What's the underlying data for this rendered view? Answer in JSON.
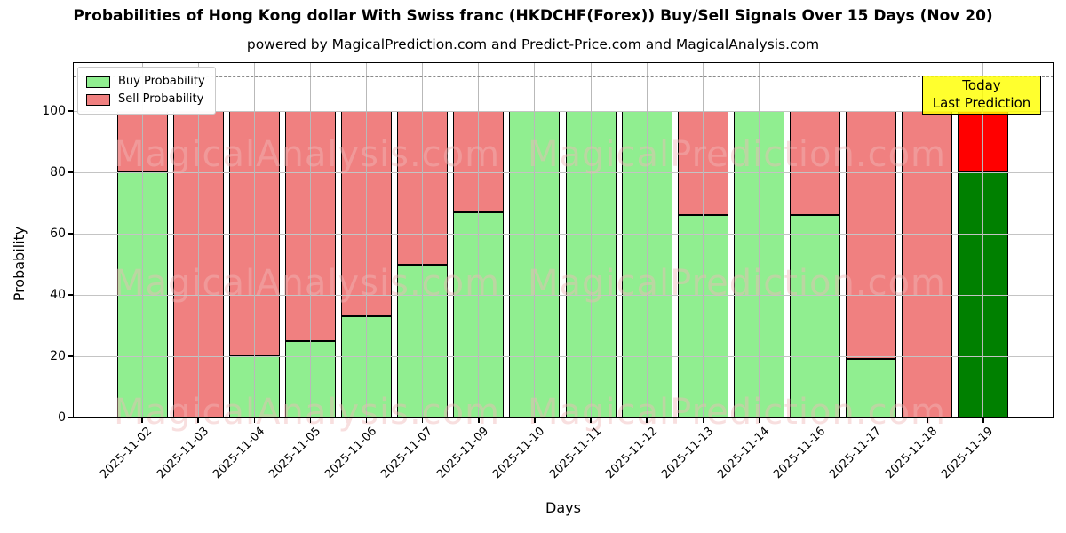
{
  "chart_data": {
    "type": "bar",
    "stacked": true,
    "title": "Probabilities of Hong Kong dollar With Swiss franc (HKDCHF(Forex)) Buy/Sell Signals Over 15 Days (Nov 20)",
    "subtitle": "powered by MagicalPrediction.com and Predict-Price.com and MagicalAnalysis.com",
    "xlabel": "Days",
    "ylabel": "Probability",
    "categories": [
      "2025-11-02",
      "2025-11-03",
      "2025-11-04",
      "2025-11-05",
      "2025-11-06",
      "2025-11-07",
      "2025-11-09",
      "2025-11-10",
      "2025-11-11",
      "2025-11-12",
      "2025-11-13",
      "2025-11-14",
      "2025-11-16",
      "2025-11-17",
      "2025-11-18",
      "2025-11-19"
    ],
    "series": [
      {
        "name": "Buy Probability",
        "color": "#90ee90",
        "values": [
          80,
          0,
          20,
          25,
          33,
          50,
          67,
          100,
          100,
          100,
          66,
          100,
          66,
          19,
          0,
          80
        ]
      },
      {
        "name": "Sell Probability",
        "color": "#f08080",
        "values": [
          20,
          100,
          80,
          75,
          67,
          50,
          33,
          0,
          0,
          0,
          34,
          0,
          34,
          81,
          100,
          20
        ]
      }
    ],
    "today_bar": {
      "index": 15,
      "buy_color": "#008000",
      "sell_color": "#ff0000"
    },
    "annotation": {
      "lines": [
        "Today",
        "Last Prediction"
      ],
      "bg_color": "#ffff00"
    },
    "yticks": [
      0,
      20,
      40,
      60,
      80,
      100
    ],
    "ylim": [
      0,
      116
    ],
    "dashed_line_y": 111,
    "grid": true,
    "legend_position": "upper-left",
    "watermarks": [
      "MagicalAnalysis.com",
      "MagicalPrediction.com"
    ]
  }
}
